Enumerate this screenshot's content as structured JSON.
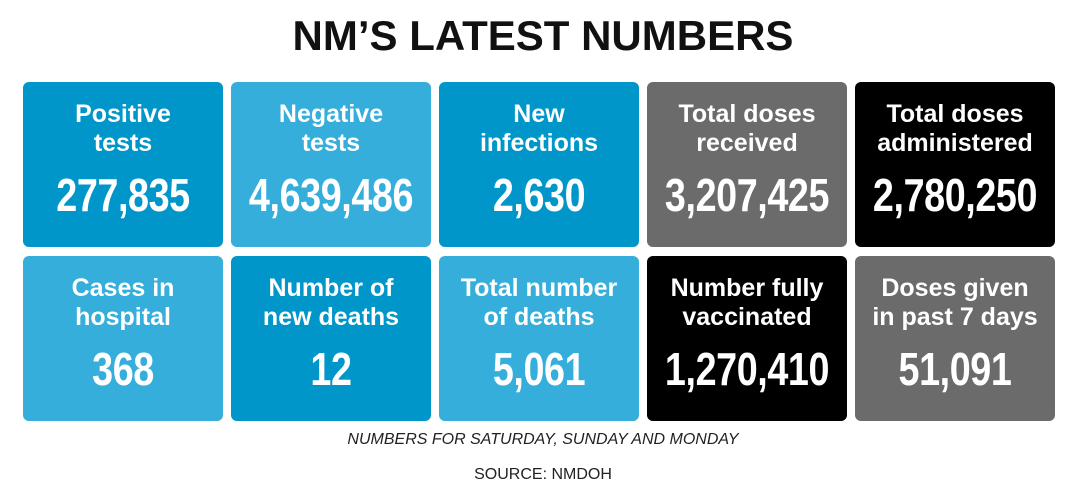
{
  "title": "NM’S LATEST NUMBERS",
  "colors": {
    "dark_blue": "#0096c9",
    "light_blue": "#35aedb",
    "gray": "#6b6b6b",
    "black": "#000000"
  },
  "tiles": [
    {
      "label": "Positive\ntests",
      "value": "277,835",
      "color": "#0096c9"
    },
    {
      "label": "Negative\ntests",
      "value": "4,639,486",
      "color": "#35aedb"
    },
    {
      "label": "New\ninfections",
      "value": "2,630",
      "color": "#0096c9"
    },
    {
      "label": "Total doses\nreceived",
      "value": "3,207,425",
      "color": "#6b6b6b"
    },
    {
      "label": "Total doses\nadministered",
      "value": "2,780,250",
      "color": "#000000"
    },
    {
      "label": "Cases in\nhospital",
      "value": "368",
      "color": "#35aedb"
    },
    {
      "label": "Number of\nnew deaths",
      "value": "12",
      "color": "#0096c9"
    },
    {
      "label": "Total number\nof deaths",
      "value": "5,061",
      "color": "#35aedb"
    },
    {
      "label": "Number fully\nvaccinated",
      "value": "1,270,410",
      "color": "#000000"
    },
    {
      "label": "Doses given\nin past 7 days",
      "value": "51,091",
      "color": "#6b6b6b"
    }
  ],
  "note": "NUMBERS FOR SATURDAY, SUNDAY AND MONDAY",
  "source": "SOURCE: NMDOH"
}
